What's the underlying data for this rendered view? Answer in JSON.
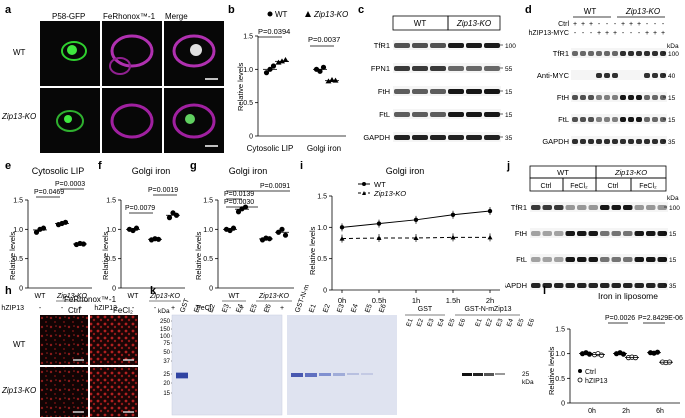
{
  "panels": {
    "a": {
      "label": "a",
      "cols": [
        "P58-GFP",
        "FeRhonox™-1",
        "Merge"
      ],
      "rows": [
        "WT",
        "Zip13-KO"
      ]
    },
    "b": {
      "label": "b",
      "legend": [
        "WT",
        "Zip13-KO"
      ],
      "ylabel": "Relative levels",
      "p1": "P=0.0394",
      "p2": "P=0.0037",
      "xcats": [
        "Cytosolic LIP",
        "Golgi iron"
      ]
    },
    "c": {
      "label": "c",
      "groups": [
        "WT",
        "Zip13-KO"
      ],
      "bands": [
        "TfR1",
        "FPN1",
        "FtH",
        "FtL",
        "GAPDH"
      ],
      "kda": [
        "100",
        "55",
        "15",
        "15",
        "35"
      ]
    },
    "d": {
      "label": "d",
      "groups": [
        "WT",
        "Zip13-KO"
      ],
      "rowlabels": [
        "Ctrl",
        "hZIP13-MYC"
      ],
      "ctrl_signs": [
        "+",
        "+",
        "+",
        "-",
        "-",
        "-",
        "+",
        "+",
        "+",
        "-",
        "-",
        "-"
      ],
      "myc_signs": [
        "-",
        "-",
        "-",
        "+",
        "+",
        "+",
        "-",
        "-",
        "-",
        "+",
        "+",
        "+"
      ],
      "bands": [
        "TfR1",
        "Anti-MYC",
        "FtH",
        "FtL",
        "GAPDH"
      ],
      "kda_label": "kDa",
      "kda": [
        "100",
        "40",
        "15",
        "15",
        "35"
      ]
    },
    "e": {
      "label": "e",
      "title": "Cytosolic LIP",
      "p1": "P=0.0469",
      "p2": "P=0.0003",
      "ylabel": "Relative levels",
      "xcats": [
        "WT",
        "Zip13-KO"
      ],
      "rowlabel": "hZIP13",
      "signs": [
        "-",
        "-",
        "+"
      ]
    },
    "f": {
      "label": "f",
      "title": "Golgi iron",
      "p1": "P=0.0079",
      "p2": "P=0.0019",
      "ylabel": "Relative levels",
      "xcats": [
        "WT",
        "Zip13-KO"
      ],
      "rowlabel": "hZIP13",
      "signs": [
        "-",
        "-",
        "+"
      ]
    },
    "g": {
      "label": "g",
      "title": "Golgi iron",
      "p1": "P=0.0139",
      "p2": "P=0.0091",
      "p3": "P=0.0030",
      "ylabel": "Relative levels",
      "xcats": [
        "WT",
        "Zip13-KO"
      ],
      "rowlabel": "FeCl₂",
      "signs": [
        "-",
        "+",
        "-",
        "+"
      ]
    },
    "i": {
      "label": "i",
      "title": "Golgi iron",
      "legend": [
        "WT",
        "Zip13-KO"
      ],
      "ylabel": "Relative levels"
    },
    "j": {
      "label": "j",
      "groups": [
        "WT",
        "Zip13-KO"
      ],
      "conds": [
        "Ctrl",
        "FeCl₂",
        "Ctrl",
        "FeCl₂"
      ],
      "bands": [
        "TfR1",
        "FtH",
        "FtL",
        "GAPDH"
      ],
      "kda_label": "kDa",
      "kda": [
        "100",
        "15",
        "15",
        "35"
      ]
    },
    "h": {
      "label": "h",
      "title": "FeRhonox™-1",
      "cols": [
        "Ctrl",
        "FeCl₂"
      ],
      "rows": [
        "WT",
        "Zip13-KO"
      ]
    },
    "k": {
      "label": "k",
      "kda_label": "kDa",
      "ladder": [
        "250",
        "150",
        "100",
        "75",
        "50",
        "37",
        "25",
        "20",
        "15"
      ],
      "lanes1": [
        "GST",
        "E1",
        "E2",
        "E3",
        "E4",
        "E5",
        "E6"
      ],
      "lanes2": [
        "GST-N-mZip13",
        "E1",
        "E2",
        "E3",
        "E4",
        "E5",
        "E6"
      ],
      "blot_groups": [
        "GST",
        "GST-N-mZip13"
      ],
      "blot_lanes": [
        "E1",
        "E2",
        "E3",
        "E4",
        "E5",
        "E6",
        "E1",
        "E2",
        "E3",
        "E4",
        "E5",
        "E6"
      ],
      "blot_kda": "25",
      "blot_kda_unit": "kDa"
    },
    "l": {
      "label": "l",
      "title": "Iron in liposome",
      "p1": "P=0.0026",
      "p2": "P=2.8429E-06",
      "ylabel": "Relative levels",
      "legend": [
        "Ctrl",
        "hZIP13"
      ]
    }
  },
  "chart_data": [
    {
      "id": "b",
      "type": "scatter",
      "ylim": [
        0,
        1.5
      ],
      "yticks": [
        "0",
        "0.5",
        "1.0",
        "1.5"
      ],
      "categories": [
        "Cytosolic LIP",
        "Golgi iron"
      ],
      "series": [
        {
          "name": "WT",
          "values": [
            [
              0.95,
              1.0,
              1.05
            ],
            [
              1.0,
              0.97,
              1.03
            ]
          ]
        },
        {
          "name": "Zip13-KO",
          "values": [
            [
              1.1,
              1.12,
              1.14
            ],
            [
              0.82,
              0.84,
              0.83
            ]
          ]
        }
      ]
    },
    {
      "id": "e",
      "type": "scatter",
      "ylim": [
        0,
        1.5
      ],
      "yticks": [
        "0",
        "0.5",
        "1.0",
        "1.5"
      ],
      "groups": [
        [
          0.95,
          1.0,
          1.02
        ],
        [
          1.08,
          1.1,
          1.12
        ],
        [
          0.74,
          0.76,
          0.75
        ]
      ]
    },
    {
      "id": "f",
      "type": "scatter",
      "ylim": [
        0,
        1.5
      ],
      "yticks": [
        "0",
        "0.5",
        "1.0",
        "1.5"
      ],
      "groups": [
        [
          1.0,
          0.98,
          1.02
        ],
        [
          0.82,
          0.84,
          0.83
        ],
        [
          1.2,
          1.28,
          1.24
        ]
      ]
    },
    {
      "id": "g",
      "type": "scatter",
      "ylim": [
        0,
        1.5
      ],
      "yticks": [
        "0",
        "0.5",
        "1.0",
        "1.5"
      ],
      "groups": [
        [
          1.0,
          0.98,
          1.02
        ],
        [
          1.3,
          1.35,
          1.38
        ],
        [
          0.82,
          0.85,
          0.84
        ],
        [
          0.95,
          1.0,
          0.9
        ]
      ]
    },
    {
      "id": "i",
      "type": "line",
      "x": [
        "0h",
        "0.5h",
        "1h",
        "1.5h",
        "2h"
      ],
      "ylim": [
        0,
        1.5
      ],
      "yticks": [
        "0",
        "0.5",
        "1.0",
        "1.5"
      ],
      "series": [
        {
          "name": "WT",
          "values": [
            1.0,
            1.06,
            1.12,
            1.2,
            1.26
          ]
        },
        {
          "name": "Zip13-KO",
          "values": [
            0.82,
            0.83,
            0.83,
            0.84,
            0.84
          ]
        }
      ]
    },
    {
      "id": "l",
      "type": "scatter",
      "ylim": [
        0,
        1.5
      ],
      "yticks": [
        "0",
        "0.5",
        "1.0",
        "1.5"
      ],
      "categories": [
        "0h",
        "2h",
        "6h"
      ],
      "series": [
        {
          "name": "Ctrl",
          "values": [
            [
              1.0,
              1.02,
              0.99
            ],
            [
              1.0,
              1.02,
              0.99
            ],
            [
              1.02,
              1.01,
              1.03
            ]
          ]
        },
        {
          "name": "hZIP13",
          "values": [
            [
              0.98,
              1.0,
              0.97
            ],
            [
              0.92,
              0.93,
              0.92
            ],
            [
              0.83,
              0.82,
              0.83
            ]
          ]
        }
      ]
    }
  ]
}
